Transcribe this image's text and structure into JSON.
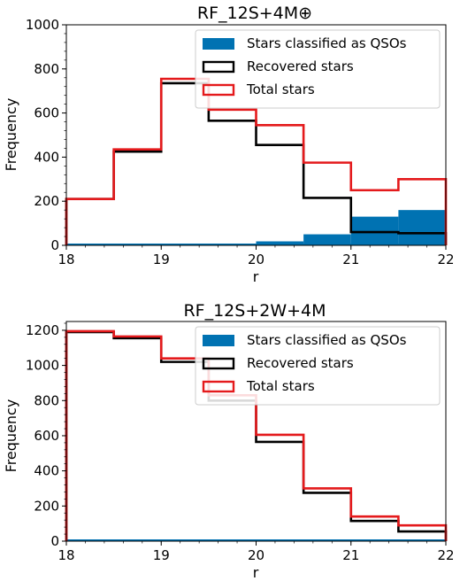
{
  "colors": {
    "fill": "#0072b2",
    "recovered": "#000000",
    "total": "#e41a1c",
    "legend_border": "#cccccc",
    "background": "#ffffff"
  },
  "chart_data": [
    {
      "type": "histogram",
      "title": "RF_12S+4M⊕",
      "xlabel": "r",
      "ylabel": "Frequency",
      "xlim": [
        18,
        22
      ],
      "ylim": [
        0,
        1000
      ],
      "xticks": [
        18,
        19,
        20,
        21,
        22
      ],
      "yticks": [
        0,
        200,
        400,
        600,
        800,
        1000
      ],
      "bin_edges": [
        18,
        18.5,
        19,
        19.5,
        20,
        20.5,
        21,
        21.5,
        22
      ],
      "legend_position": "upper right",
      "series": [
        {
          "name": "Stars classified as QSOs",
          "kind": "filled",
          "values": [
            0,
            0,
            5,
            8,
            18,
            50,
            130,
            160
          ]
        },
        {
          "name": "Recovered stars",
          "kind": "step",
          "values": [
            210,
            425,
            735,
            565,
            455,
            215,
            60,
            55
          ]
        },
        {
          "name": "Total stars",
          "kind": "step",
          "values": [
            210,
            435,
            755,
            615,
            545,
            375,
            250,
            300
          ]
        }
      ]
    },
    {
      "type": "histogram",
      "title": "RF_12S+2W+4M",
      "xlabel": "r",
      "ylabel": "Frequency",
      "xlim": [
        18,
        22
      ],
      "ylim": [
        0,
        1250
      ],
      "xticks": [
        18,
        19,
        20,
        21,
        22
      ],
      "yticks": [
        0,
        200,
        400,
        600,
        800,
        1000,
        1200
      ],
      "bin_edges": [
        18,
        18.5,
        19,
        19.5,
        20,
        20.5,
        21,
        21.5,
        22
      ],
      "legend_position": "upper right",
      "series": [
        {
          "name": "Stars classified as QSOs",
          "kind": "filled",
          "values": [
            0,
            0,
            0,
            0,
            0,
            0,
            0,
            0
          ]
        },
        {
          "name": "Recovered stars",
          "kind": "step",
          "values": [
            1190,
            1155,
            1020,
            800,
            565,
            275,
            115,
            55
          ]
        },
        {
          "name": "Total stars",
          "kind": "step",
          "values": [
            1195,
            1165,
            1040,
            830,
            605,
            300,
            140,
            90
          ]
        }
      ]
    }
  ]
}
